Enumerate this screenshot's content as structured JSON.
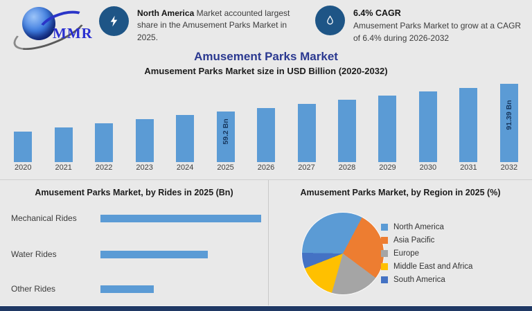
{
  "brand": {
    "logo_text": "MMR"
  },
  "banner": {
    "item1": {
      "icon": "zap-icon",
      "bold": "North America",
      "text": " Market accounted largest share in the Amusement Parks Market in 2025."
    },
    "item2": {
      "icon": "droplet-icon",
      "title": "6.4% CAGR",
      "text": "Amusement Parks Market to grow at a CAGR of 6.4% during 2026-2032"
    }
  },
  "titles": {
    "main": "Amusement Parks Market",
    "subtitle": "Amusement Parks Market size in USD Billion (2020-2032)"
  },
  "chart_data": [
    {
      "type": "bar",
      "orientation": "vertical",
      "title": "Amusement Parks Market size in USD Billion (2020-2032)",
      "categories": [
        "2020",
        "2021",
        "2022",
        "2023",
        "2024",
        "2025",
        "2026",
        "2027",
        "2028",
        "2029",
        "2030",
        "2031",
        "2032"
      ],
      "values": [
        35.6,
        40.5,
        45.4,
        50.2,
        55.1,
        59.2,
        63.2,
        68.0,
        72.9,
        77.8,
        82.6,
        86.7,
        91.39
      ],
      "point_labels": {
        "2025": "59.2 Bn",
        "2032": "91.39 Bn"
      },
      "ylim": [
        0,
        98
      ],
      "bar_color": "#5b9bd5",
      "grid": false,
      "unit": "USD Billion"
    },
    {
      "type": "bar",
      "orientation": "horizontal",
      "title": "Amusement Parks Market, by Rides in 2025 (Bn)",
      "categories": [
        "Mechanical Rides",
        "Water Rides",
        "Other Rides"
      ],
      "values": [
        29.6,
        19.8,
        9.8
      ],
      "xlim": [
        0,
        30
      ],
      "bar_color": "#5b9bd5",
      "unit": "Bn"
    },
    {
      "type": "pie",
      "title": "Amusement Parks Market, by Region in 2025 (%)",
      "labels": [
        "North America",
        "Asia Pacific",
        "Europe",
        "Middle East and Africa",
        "South America"
      ],
      "values": [
        32.5,
        27.4,
        19.2,
        14.7,
        6.2
      ],
      "colors": [
        "#5b9bd5",
        "#ed7d31",
        "#a5a5a5",
        "#ffc000",
        "#4472c4"
      ],
      "start_angle_deg": 271,
      "legend_position": "right",
      "unit": "%"
    }
  ]
}
